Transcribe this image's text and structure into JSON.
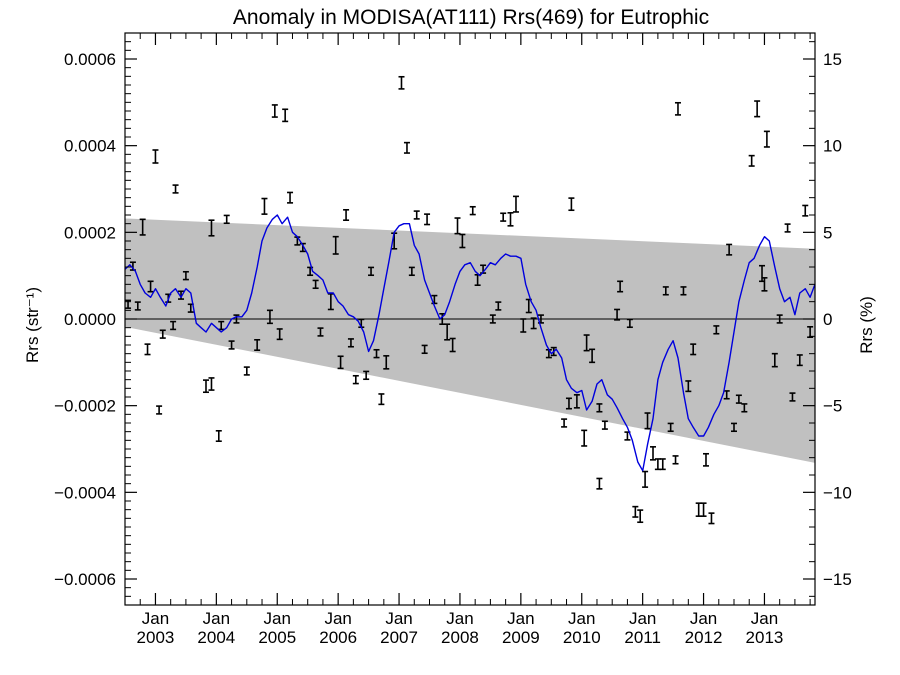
{
  "chart_data": {
    "type": "line",
    "title": "Anomaly in MODISA(AT111) Rrs(469) for Eutrophic",
    "ylabel_left": "Rrs (str⁻¹)",
    "ylabel_right": "Rrs (%)",
    "xlim": [
      2002.5,
      2013.83
    ],
    "ylim_left": [
      -0.00066,
      0.00066
    ],
    "ylim_right": [
      -16.5,
      16.5
    ],
    "y_ticks_left": [
      {
        "value": 0.0006,
        "label": "0.0006"
      },
      {
        "value": 0.0004,
        "label": "0.0004"
      },
      {
        "value": 0.0002,
        "label": "0.0002"
      },
      {
        "value": 0.0,
        "label": "0.0000"
      },
      {
        "value": -0.0002,
        "label": "−0.0002"
      },
      {
        "value": -0.0004,
        "label": "−0.0004"
      },
      {
        "value": -0.0006,
        "label": "−0.0006"
      }
    ],
    "y_ticks_right": [
      {
        "value": 15,
        "label": "15"
      },
      {
        "value": 10,
        "label": "10"
      },
      {
        "value": 5,
        "label": "5"
      },
      {
        "value": 0,
        "label": "0"
      },
      {
        "value": -5,
        "label": "−5"
      },
      {
        "value": -10,
        "label": "−10"
      },
      {
        "value": -15,
        "label": "−15"
      }
    ],
    "x_ticks": [
      {
        "x": 2003.0,
        "month": "Jan",
        "year": "2003"
      },
      {
        "x": 2004.0,
        "month": "Jan",
        "year": "2004"
      },
      {
        "x": 2005.0,
        "month": "Jan",
        "year": "2005"
      },
      {
        "x": 2006.0,
        "month": "Jan",
        "year": "2006"
      },
      {
        "x": 2007.0,
        "month": "Jan",
        "year": "2007"
      },
      {
        "x": 2008.0,
        "month": "Jan",
        "year": "2008"
      },
      {
        "x": 2009.0,
        "month": "Jan",
        "year": "2009"
      },
      {
        "x": 2010.0,
        "month": "Jan",
        "year": "2010"
      },
      {
        "x": 2011.0,
        "month": "Jan",
        "year": "2011"
      },
      {
        "x": 2012.0,
        "month": "Jan",
        "year": "2012"
      },
      {
        "x": 2013.0,
        "month": "Jan",
        "year": "2013"
      }
    ],
    "envelope": {
      "upper": [
        [
          2002.5,
          0.000232
        ],
        [
          2013.83,
          0.000162
        ]
      ],
      "lower": [
        [
          2002.5,
          -1.8e-05
        ],
        [
          2013.83,
          -0.000332
        ]
      ]
    },
    "zero_line": 0.0,
    "running_mean": [
      [
        2002.5,
        0.000115
      ],
      [
        2002.58,
        0.000125
      ],
      [
        2002.67,
        0.00011
      ],
      [
        2002.75,
        8e-05
      ],
      [
        2002.83,
        6e-05
      ],
      [
        2002.92,
        5e-05
      ],
      [
        2003.0,
        7e-05
      ],
      [
        2003.08,
        5e-05
      ],
      [
        2003.17,
        3e-05
      ],
      [
        2003.25,
        6e-05
      ],
      [
        2003.33,
        7e-05
      ],
      [
        2003.42,
        5e-05
      ],
      [
        2003.5,
        7e-05
      ],
      [
        2003.58,
        6e-05
      ],
      [
        2003.67,
        -1e-05
      ],
      [
        2003.75,
        -2e-05
      ],
      [
        2003.83,
        -3e-05
      ],
      [
        2003.92,
        -1e-05
      ],
      [
        2004.0,
        -2e-05
      ],
      [
        2004.08,
        -3e-05
      ],
      [
        2004.17,
        -2e-05
      ],
      [
        2004.25,
        0.0
      ],
      [
        2004.33,
        5e-06
      ],
      [
        2004.42,
        5e-06
      ],
      [
        2004.5,
        2e-05
      ],
      [
        2004.58,
        6e-05
      ],
      [
        2004.67,
        0.00012
      ],
      [
        2004.75,
        0.00018
      ],
      [
        2004.83,
        0.00021
      ],
      [
        2004.92,
        0.00023
      ],
      [
        2005.0,
        0.00024
      ],
      [
        2005.08,
        0.00022
      ],
      [
        2005.17,
        0.000235
      ],
      [
        2005.25,
        0.0002
      ],
      [
        2005.33,
        0.00019
      ],
      [
        2005.42,
        0.00017
      ],
      [
        2005.5,
        0.00015
      ],
      [
        2005.58,
        0.00011
      ],
      [
        2005.67,
        0.0001
      ],
      [
        2005.75,
        9e-05
      ],
      [
        2005.83,
        6e-05
      ],
      [
        2005.92,
        6e-05
      ],
      [
        2006.0,
        4e-05
      ],
      [
        2006.08,
        3e-05
      ],
      [
        2006.17,
        1e-05
      ],
      [
        2006.25,
        5e-06
      ],
      [
        2006.33,
        -5e-06
      ],
      [
        2006.42,
        -3e-05
      ],
      [
        2006.5,
        -7.5e-05
      ],
      [
        2006.58,
        -5e-05
      ],
      [
        2006.67,
        1e-05
      ],
      [
        2006.75,
        7e-05
      ],
      [
        2006.83,
        0.00013
      ],
      [
        2006.92,
        0.0002
      ],
      [
        2007.0,
        0.000215
      ],
      [
        2007.08,
        0.00022
      ],
      [
        2007.17,
        0.00022
      ],
      [
        2007.25,
        0.00017
      ],
      [
        2007.33,
        0.00015
      ],
      [
        2007.42,
        9e-05
      ],
      [
        2007.5,
        6e-05
      ],
      [
        2007.58,
        3e-05
      ],
      [
        2007.67,
        0.0
      ],
      [
        2007.75,
        1e-05
      ],
      [
        2007.83,
        4e-05
      ],
      [
        2007.92,
        8e-05
      ],
      [
        2008.0,
        0.00011
      ],
      [
        2008.08,
        0.000125
      ],
      [
        2008.17,
        0.00013
      ],
      [
        2008.25,
        0.00011
      ],
      [
        2008.33,
        0.0001
      ],
      [
        2008.42,
        0.000115
      ],
      [
        2008.5,
        0.00013
      ],
      [
        2008.58,
        0.000125
      ],
      [
        2008.67,
        0.00014
      ],
      [
        2008.75,
        0.00015
      ],
      [
        2008.83,
        0.000145
      ],
      [
        2008.92,
        0.000145
      ],
      [
        2009.0,
        0.00014
      ],
      [
        2009.08,
        8e-05
      ],
      [
        2009.17,
        4e-05
      ],
      [
        2009.25,
        2e-05
      ],
      [
        2009.33,
        -2e-05
      ],
      [
        2009.42,
        -6e-05
      ],
      [
        2009.5,
        -8e-05
      ],
      [
        2009.58,
        -7e-05
      ],
      [
        2009.67,
        -9e-05
      ],
      [
        2009.75,
        -0.00014
      ],
      [
        2009.83,
        -0.00016
      ],
      [
        2009.92,
        -0.00017
      ],
      [
        2010.0,
        -0.000165
      ],
      [
        2010.08,
        -0.00021
      ],
      [
        2010.17,
        -0.00019
      ],
      [
        2010.25,
        -0.00015
      ],
      [
        2010.33,
        -0.00014
      ],
      [
        2010.42,
        -0.000175
      ],
      [
        2010.5,
        -0.000185
      ],
      [
        2010.58,
        -0.000205
      ],
      [
        2010.67,
        -0.00023
      ],
      [
        2010.75,
        -0.00025
      ],
      [
        2010.83,
        -0.00028
      ],
      [
        2010.92,
        -0.00033
      ],
      [
        2011.0,
        -0.00035
      ],
      [
        2011.08,
        -0.00029
      ],
      [
        2011.17,
        -0.00023
      ],
      [
        2011.25,
        -0.00014
      ],
      [
        2011.33,
        -0.0001
      ],
      [
        2011.42,
        -7e-05
      ],
      [
        2011.5,
        -5e-05
      ],
      [
        2011.58,
        -9e-05
      ],
      [
        2011.67,
        -0.00017
      ],
      [
        2011.75,
        -0.00023
      ],
      [
        2011.83,
        -0.00025
      ],
      [
        2011.92,
        -0.00027
      ],
      [
        2012.0,
        -0.00027
      ],
      [
        2012.08,
        -0.00025
      ],
      [
        2012.17,
        -0.00022
      ],
      [
        2012.25,
        -0.0002
      ],
      [
        2012.33,
        -0.00017
      ],
      [
        2012.42,
        -0.0001
      ],
      [
        2012.5,
        -3e-05
      ],
      [
        2012.58,
        4e-05
      ],
      [
        2012.67,
        9e-05
      ],
      [
        2012.75,
        0.00013
      ],
      [
        2012.83,
        0.00014
      ],
      [
        2012.92,
        0.00017
      ],
      [
        2013.0,
        0.00019
      ],
      [
        2013.08,
        0.00018
      ],
      [
        2013.17,
        0.00012
      ],
      [
        2013.25,
        7e-05
      ],
      [
        2013.33,
        4e-05
      ],
      [
        2013.42,
        5e-05
      ],
      [
        2013.5,
        1e-05
      ],
      [
        2013.58,
        6e-05
      ],
      [
        2013.67,
        7e-05
      ],
      [
        2013.75,
        5e-05
      ],
      [
        2013.83,
        8e-05
      ]
    ],
    "observations": [
      {
        "x": 2002.55,
        "y": 3.4e-05,
        "err": 9e-06
      },
      {
        "x": 2002.63,
        "y": 0.000122,
        "err": 9e-06
      },
      {
        "x": 2002.71,
        "y": 3e-05,
        "err": 9e-06
      },
      {
        "x": 2002.79,
        "y": 0.000212,
        "err": 1.8e-05
      },
      {
        "x": 2002.87,
        "y": -7e-05,
        "err": 1.2e-05
      },
      {
        "x": 2002.92,
        "y": 7.5e-05,
        "err": 1.2e-05
      },
      {
        "x": 2003.0,
        "y": 0.000375,
        "err": 1.5e-05
      },
      {
        "x": 2003.06,
        "y": -0.00021,
        "err": 9e-06
      },
      {
        "x": 2003.12,
        "y": -3.5e-05,
        "err": 9e-06
      },
      {
        "x": 2003.21,
        "y": 4.8e-05,
        "err": 9e-06
      },
      {
        "x": 2003.29,
        "y": -1.5e-05,
        "err": 9e-06
      },
      {
        "x": 2003.33,
        "y": 0.0003,
        "err": 9e-06
      },
      {
        "x": 2003.42,
        "y": 5.5e-05,
        "err": 9e-06
      },
      {
        "x": 2003.5,
        "y": 0.0001,
        "err": 9e-06
      },
      {
        "x": 2003.58,
        "y": 2.5e-05,
        "err": 9e-06
      },
      {
        "x": 2003.83,
        "y": -0.000155,
        "err": 1.4e-05
      },
      {
        "x": 2003.92,
        "y": 0.00021,
        "err": 1.8e-05
      },
      {
        "x": 2003.92,
        "y": -0.00015,
        "err": 1.4e-05
      },
      {
        "x": 2004.04,
        "y": -0.00027,
        "err": 1.2e-05
      },
      {
        "x": 2004.08,
        "y": -1.5e-05,
        "err": 9e-06
      },
      {
        "x": 2004.17,
        "y": 0.00023,
        "err": 9e-06
      },
      {
        "x": 2004.25,
        "y": -6e-05,
        "err": 9e-06
      },
      {
        "x": 2004.33,
        "y": 0.0,
        "err": 9e-06
      },
      {
        "x": 2004.5,
        "y": -0.00012,
        "err": 9e-06
      },
      {
        "x": 2004.67,
        "y": -6e-05,
        "err": 1.2e-05
      },
      {
        "x": 2004.79,
        "y": 0.00026,
        "err": 1.8e-05
      },
      {
        "x": 2004.88,
        "y": 5e-06,
        "err": 1.5e-05
      },
      {
        "x": 2004.96,
        "y": 0.00048,
        "err": 1.4e-05
      },
      {
        "x": 2005.04,
        "y": -3.5e-05,
        "err": 1.2e-05
      },
      {
        "x": 2005.13,
        "y": 0.00047,
        "err": 1.4e-05
      },
      {
        "x": 2005.21,
        "y": 0.00028,
        "err": 1.2e-05
      },
      {
        "x": 2005.33,
        "y": 0.00018,
        "err": 9e-06
      },
      {
        "x": 2005.42,
        "y": 0.000165,
        "err": 9e-06
      },
      {
        "x": 2005.54,
        "y": 0.00011,
        "err": 9e-06
      },
      {
        "x": 2005.63,
        "y": 8e-05,
        "err": 9e-06
      },
      {
        "x": 2005.71,
        "y": -3e-05,
        "err": 9e-06
      },
      {
        "x": 2005.88,
        "y": 4e-05,
        "err": 1.8e-05
      },
      {
        "x": 2005.96,
        "y": 0.00017,
        "err": 2e-05
      },
      {
        "x": 2006.04,
        "y": -0.0001,
        "err": 1.4e-05
      },
      {
        "x": 2006.13,
        "y": 0.00024,
        "err": 1.2e-05
      },
      {
        "x": 2006.21,
        "y": -5.5e-05,
        "err": 9e-06
      },
      {
        "x": 2006.29,
        "y": -0.00014,
        "err": 9e-06
      },
      {
        "x": 2006.38,
        "y": -1e-05,
        "err": 9e-06
      },
      {
        "x": 2006.46,
        "y": -0.00013,
        "err": 9e-06
      },
      {
        "x": 2006.54,
        "y": 0.00011,
        "err": 9e-06
      },
      {
        "x": 2006.63,
        "y": -8e-05,
        "err": 9e-06
      },
      {
        "x": 2006.71,
        "y": -0.000185,
        "err": 1.2e-05
      },
      {
        "x": 2006.79,
        "y": -0.0001,
        "err": 1.5e-05
      },
      {
        "x": 2006.92,
        "y": 0.00018,
        "err": 1.8e-05
      },
      {
        "x": 2007.04,
        "y": 0.000545,
        "err": 1.4e-05
      },
      {
        "x": 2007.13,
        "y": 0.000395,
        "err": 1.2e-05
      },
      {
        "x": 2007.21,
        "y": 0.00011,
        "err": 9e-06
      },
      {
        "x": 2007.29,
        "y": 0.00024,
        "err": 9e-06
      },
      {
        "x": 2007.42,
        "y": -7e-05,
        "err": 9e-06
      },
      {
        "x": 2007.46,
        "y": 0.00023,
        "err": 1.2e-05
      },
      {
        "x": 2007.58,
        "y": 4.5e-05,
        "err": 9e-06
      },
      {
        "x": 2007.71,
        "y": 0.0,
        "err": 1.2e-05
      },
      {
        "x": 2007.79,
        "y": -3e-05,
        "err": 1.8e-05
      },
      {
        "x": 2007.88,
        "y": -6e-05,
        "err": 1.5e-05
      },
      {
        "x": 2007.96,
        "y": 0.000215,
        "err": 1.8e-05
      },
      {
        "x": 2008.04,
        "y": 0.00018,
        "err": 1.5e-05
      },
      {
        "x": 2008.21,
        "y": 0.00025,
        "err": 9e-06
      },
      {
        "x": 2008.29,
        "y": 9e-05,
        "err": 1.2e-05
      },
      {
        "x": 2008.38,
        "y": 0.000115,
        "err": 9e-06
      },
      {
        "x": 2008.54,
        "y": 0.0,
        "err": 9e-06
      },
      {
        "x": 2008.63,
        "y": 3e-05,
        "err": 9e-06
      },
      {
        "x": 2008.71,
        "y": 0.000235,
        "err": 9e-06
      },
      {
        "x": 2008.83,
        "y": 0.00023,
        "err": 1.5e-05
      },
      {
        "x": 2008.92,
        "y": 0.000265,
        "err": 1.8e-05
      },
      {
        "x": 2009.04,
        "y": -1.5e-05,
        "err": 1.5e-05
      },
      {
        "x": 2009.13,
        "y": 3e-05,
        "err": 1.5e-05
      },
      {
        "x": 2009.21,
        "y": -1e-05,
        "err": 1.2e-05
      },
      {
        "x": 2009.33,
        "y": 0.0,
        "err": 9e-06
      },
      {
        "x": 2009.46,
        "y": -8e-05,
        "err": 9e-06
      },
      {
        "x": 2009.54,
        "y": -7.5e-05,
        "err": 9e-06
      },
      {
        "x": 2009.71,
        "y": -0.00024,
        "err": 9e-06
      },
      {
        "x": 2009.79,
        "y": -0.000195,
        "err": 1.2e-05
      },
      {
        "x": 2009.83,
        "y": 0.000265,
        "err": 1.4e-05
      },
      {
        "x": 2009.92,
        "y": -0.00019,
        "err": 1.5e-05
      },
      {
        "x": 2010.04,
        "y": -0.000275,
        "err": 1.8e-05
      },
      {
        "x": 2010.08,
        "y": -5.5e-05,
        "err": 1.8e-05
      },
      {
        "x": 2010.17,
        "y": -8.5e-05,
        "err": 1.5e-05
      },
      {
        "x": 2010.29,
        "y": -0.00038,
        "err": 1.2e-05
      },
      {
        "x": 2010.29,
        "y": -0.000205,
        "err": 9e-06
      },
      {
        "x": 2010.38,
        "y": -0.000245,
        "err": 9e-06
      },
      {
        "x": 2010.58,
        "y": 1e-05,
        "err": 1.2e-05
      },
      {
        "x": 2010.63,
        "y": 7.5e-05,
        "err": 1.2e-05
      },
      {
        "x": 2010.75,
        "y": -0.00027,
        "err": 9e-06
      },
      {
        "x": 2010.79,
        "y": -1e-05,
        "err": 9e-06
      },
      {
        "x": 2010.88,
        "y": -0.000445,
        "err": 1.2e-05
      },
      {
        "x": 2010.96,
        "y": -0.000455,
        "err": 1.4e-05
      },
      {
        "x": 2011.04,
        "y": -0.00037,
        "err": 1.8e-05
      },
      {
        "x": 2011.08,
        "y": -0.000235,
        "err": 1.8e-05
      },
      {
        "x": 2011.17,
        "y": -0.00031,
        "err": 1.5e-05
      },
      {
        "x": 2011.25,
        "y": -0.000335,
        "err": 1.2e-05
      },
      {
        "x": 2011.33,
        "y": -0.000335,
        "err": 1.2e-05
      },
      {
        "x": 2011.38,
        "y": 6.5e-05,
        "err": 9e-06
      },
      {
        "x": 2011.46,
        "y": -0.00025,
        "err": 9e-06
      },
      {
        "x": 2011.54,
        "y": -0.000325,
        "err": 9e-06
      },
      {
        "x": 2011.58,
        "y": 0.000485,
        "err": 1.4e-05
      },
      {
        "x": 2011.67,
        "y": 6.5e-05,
        "err": 9e-06
      },
      {
        "x": 2011.75,
        "y": -0.000155,
        "err": 1.2e-05
      },
      {
        "x": 2011.83,
        "y": -7e-05,
        "err": 1.2e-05
      },
      {
        "x": 2011.92,
        "y": -0.00044,
        "err": 1.5e-05
      },
      {
        "x": 2012.0,
        "y": -0.00044,
        "err": 1.5e-05
      },
      {
        "x": 2012.04,
        "y": -0.000325,
        "err": 1.4e-05
      },
      {
        "x": 2012.13,
        "y": -0.00046,
        "err": 1.2e-05
      },
      {
        "x": 2012.21,
        "y": -2.5e-05,
        "err": 9e-06
      },
      {
        "x": 2012.38,
        "y": -0.000175,
        "err": 9e-06
      },
      {
        "x": 2012.42,
        "y": 0.00016,
        "err": 1.2e-05
      },
      {
        "x": 2012.5,
        "y": -0.00025,
        "err": 9e-06
      },
      {
        "x": 2012.58,
        "y": -0.000185,
        "err": 9e-06
      },
      {
        "x": 2012.67,
        "y": -0.000205,
        "err": 9e-06
      },
      {
        "x": 2012.79,
        "y": 0.000365,
        "err": 1.2e-05
      },
      {
        "x": 2012.88,
        "y": 0.000485,
        "err": 1.8e-05
      },
      {
        "x": 2012.96,
        "y": 0.000105,
        "err": 1.8e-05
      },
      {
        "x": 2013.0,
        "y": 8e-05,
        "err": 1.5e-05
      },
      {
        "x": 2013.04,
        "y": 0.000415,
        "err": 1.8e-05
      },
      {
        "x": 2013.17,
        "y": -9.5e-05,
        "err": 1.5e-05
      },
      {
        "x": 2013.25,
        "y": 0.0,
        "err": 9e-06
      },
      {
        "x": 2013.38,
        "y": 0.00021,
        "err": 9e-06
      },
      {
        "x": 2013.46,
        "y": -0.00018,
        "err": 9e-06
      },
      {
        "x": 2013.58,
        "y": -9.5e-05,
        "err": 1.2e-05
      },
      {
        "x": 2013.67,
        "y": 0.00025,
        "err": 1.2e-05
      },
      {
        "x": 2013.75,
        "y": -3e-05,
        "err": 1.2e-05
      }
    ],
    "grid": false,
    "colors": {
      "running_mean": "#0000dd",
      "envelope": "#c0c0c0",
      "errorbar": "#000000",
      "axes": "#000000"
    }
  }
}
